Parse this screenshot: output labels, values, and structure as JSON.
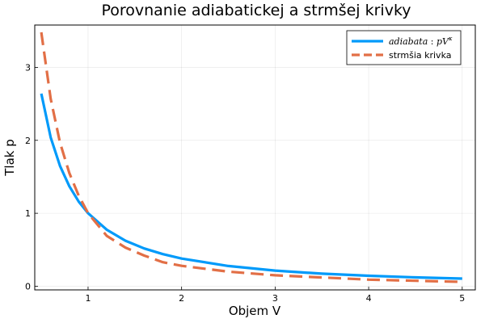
{
  "chart_data": {
    "type": "line",
    "title": "Porovnanie adiabatickej a strmšej krivky",
    "xlabel": "Objem V",
    "ylabel": "Tlak p",
    "xlim": [
      0.43,
      5.14
    ],
    "ylim": [
      -0.05,
      3.58
    ],
    "xticks": [
      1,
      2,
      3,
      4,
      5
    ],
    "yticks": [
      0,
      1,
      2,
      3
    ],
    "grid": true,
    "legend": "top-right",
    "series": [
      {
        "name": "adiabata: pV^κ",
        "legend_main": "adiabata",
        "legend_sep": " : ",
        "legend_sym": "pV",
        "legend_sup": "κ",
        "style": "solid",
        "color": "#009AFA",
        "x": [
          0.5,
          0.6,
          0.7,
          0.8,
          0.9,
          1.0,
          1.2,
          1.4,
          1.6,
          1.8,
          2.0,
          2.5,
          3.0,
          3.5,
          4.0,
          4.5,
          5.0
        ],
        "y": [
          2.64,
          2.04,
          1.65,
          1.37,
          1.16,
          1.0,
          0.774,
          0.624,
          0.518,
          0.44,
          0.379,
          0.278,
          0.215,
          0.173,
          0.144,
          0.122,
          0.105
        ]
      },
      {
        "name": "strmšia krivka",
        "style": "dashed",
        "color": "#E26F46",
        "x": [
          0.5,
          0.6,
          0.7,
          0.8,
          0.9,
          1.0,
          1.2,
          1.4,
          1.6,
          1.8,
          2.0,
          2.5,
          3.0,
          3.5,
          4.0,
          4.5,
          5.0
        ],
        "y": [
          3.48,
          2.57,
          1.97,
          1.55,
          1.24,
          1.0,
          0.69,
          0.53,
          0.42,
          0.33,
          0.28,
          0.2,
          0.15,
          0.12,
          0.09,
          0.075,
          0.06
        ]
      }
    ]
  }
}
